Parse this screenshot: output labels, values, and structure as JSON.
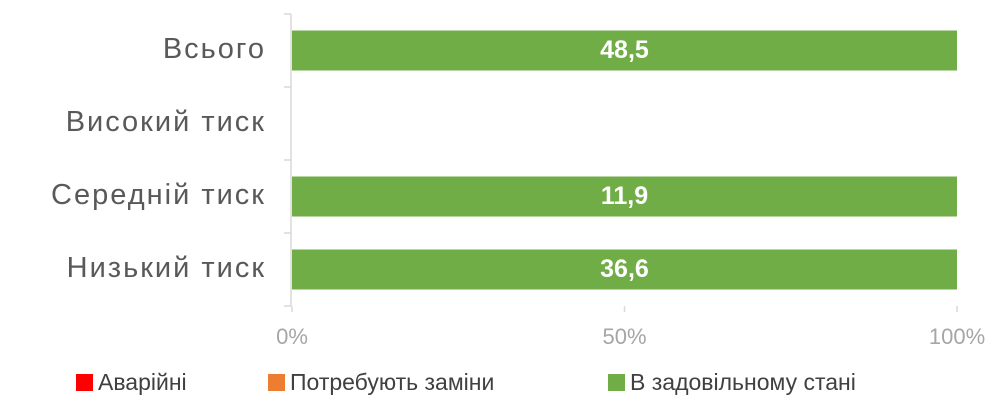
{
  "chart_data": {
    "type": "stacked_percent_hbar",
    "categories": [
      "Всього",
      "Високий тиск",
      "Середній тиск",
      "Низький тиск"
    ],
    "series": [
      {
        "name": "Аварійні",
        "color": "#ff0000",
        "values": [
          0,
          0,
          0,
          0
        ]
      },
      {
        "name": "Потребують заміни",
        "color": "#ed7d31",
        "values": [
          0,
          0,
          0,
          0
        ]
      },
      {
        "name": "В задовільному стані",
        "color": "#70ad47",
        "values": [
          48.5,
          0,
          11.9,
          36.6
        ],
        "value_labels": [
          "48,5",
          null,
          "11,9",
          "36,6"
        ]
      }
    ],
    "xlim": [
      0,
      100
    ],
    "xticks": [
      {
        "value": 0,
        "label": "0%"
      },
      {
        "value": 50,
        "label": "50%"
      },
      {
        "value": 100,
        "label": "100%"
      }
    ],
    "legend": "bottom"
  }
}
